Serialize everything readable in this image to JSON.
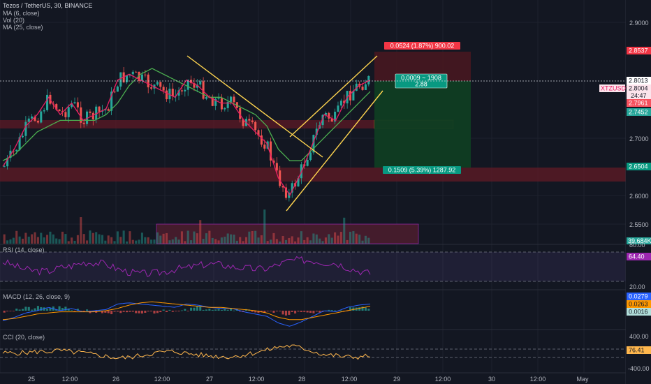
{
  "header": {
    "symbol_line": "Tezos / TetherUS, 30, BINANCE",
    "studies": [
      "MA (6, close)",
      "Vol (20)",
      "MA (25, close)"
    ]
  },
  "price_axis": {
    "ticks": [
      "2.9000",
      "2.7000",
      "2.6000",
      "2.5500"
    ],
    "labels": [
      {
        "text": "2.8537",
        "bg": "#f23645",
        "fg": "#ffffff"
      },
      {
        "text": "2.8013",
        "bg": "#ffffff",
        "fg": "#131722"
      },
      {
        "text": "2.8004",
        "bg": "#fce4ec",
        "fg": "#131722"
      },
      {
        "text": "24:47",
        "bg": "#fce4ec",
        "fg": "#131722"
      },
      {
        "text": "2.7961",
        "bg": "#f7525f",
        "fg": "#ffffff"
      },
      {
        "text": "2.7452",
        "bg": "#26a69a",
        "fg": "#ffffff"
      },
      {
        "text": "2.6504",
        "bg": "#089981",
        "fg": "#ffffff"
      },
      {
        "text": "39.684K",
        "bg": "#26a69a",
        "fg": "#ffffff"
      }
    ],
    "symbol_tag": "XTZUSDT"
  },
  "position": {
    "stop_label": "0.0524 (1.87%) 900.02",
    "entry_label_1": "0.0009 ~ 1908",
    "entry_label_2": "2.88",
    "target_label": "0.1509 (5.39%) 1287.92"
  },
  "rsi": {
    "title": "RSI (14, close)",
    "ticks": [
      "80.00",
      "20.00"
    ],
    "value_label": "64.40"
  },
  "macd": {
    "title": "MACD (12, 26, close, 9)",
    "value_labels": [
      "0.0279",
      "0.0263",
      "0.0016"
    ]
  },
  "cci": {
    "title": "CCI (20, close)",
    "ticks": [
      "400.00",
      "-400.00"
    ],
    "value_label": "76.41"
  },
  "time_axis": {
    "ticks": [
      "25",
      "12:00",
      "26",
      "12:00",
      "27",
      "12:00",
      "28",
      "12:00",
      "29",
      "12:00",
      "30",
      "12:00",
      "May"
    ]
  },
  "colors": {
    "background": "#131722",
    "up": "#26a69a",
    "down": "#ef5350",
    "ma6": "#e91e63",
    "ma25": "#4caf50",
    "trendline": "#ffd54f",
    "rsi": "#9c27b0",
    "macd": "#2962ff",
    "signal": "#ff9800",
    "cci": "#ffb74d"
  },
  "chart_data": {
    "type": "line",
    "title": "Tezos / TetherUS, 30, BINANCE",
    "ylim": [
      2.52,
      2.93
    ],
    "x_ticks": [
      "25",
      "12:00",
      "26",
      "12:00",
      "27",
      "12:00",
      "28",
      "12:00",
      "29",
      "12:00",
      "30",
      "12:00",
      "May"
    ],
    "series": [
      {
        "name": "MA (6, close)",
        "values": [
          2.65,
          2.68,
          2.72,
          2.74,
          2.77,
          2.74,
          2.76,
          2.73,
          2.74,
          2.75,
          2.8,
          2.81,
          2.8,
          2.79,
          2.78,
          2.77,
          2.8,
          2.79,
          2.77,
          2.76,
          2.76,
          2.73,
          2.71,
          2.69,
          2.63,
          2.6,
          2.64,
          2.69,
          2.74,
          2.73,
          2.77,
          2.79,
          2.8
        ]
      },
      {
        "name": "MA (25, close)",
        "values": [
          2.66,
          2.67,
          2.69,
          2.71,
          2.72,
          2.73,
          2.73,
          2.73,
          2.73,
          2.74,
          2.76,
          2.79,
          2.81,
          2.82,
          2.81,
          2.8,
          2.79,
          2.78,
          2.77,
          2.77,
          2.76,
          2.75,
          2.74,
          2.72,
          2.68,
          2.66,
          2.66,
          2.68,
          2.7,
          2.72,
          2.74,
          2.76,
          2.78
        ]
      }
    ],
    "price_levels": [
      2.8537,
      2.8013,
      2.7961,
      2.7452,
      2.6504
    ],
    "rsi_last": 64.4,
    "cci_last": 76.41
  }
}
